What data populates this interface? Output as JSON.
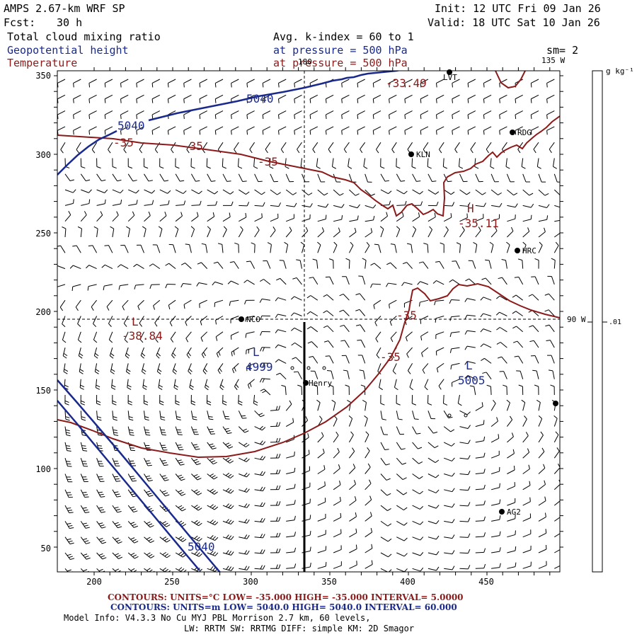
{
  "header": {
    "model": "AMPS 2.67-km WRF SP",
    "fcst_label": "Fcst:",
    "fcst_value": "30 h",
    "init": "Init: 12 UTC Fri 09 Jan 26",
    "valid": "Valid: 18 UTC Sat 10 Jan 26",
    "field1": "Total cloud mixing ratio",
    "field2": "Geopotential height",
    "field3": "Temperature",
    "avg_line": "Avg. k-index =  60 to   1",
    "pressure1": "at pressure =  500 hPa",
    "pressure2": "at pressure =  500 hPa",
    "smoothing": "sm= 2"
  },
  "map": {
    "x_ticks": [
      "200",
      "250",
      "300",
      "350",
      "400",
      "450"
    ],
    "y_ticks": [
      "50",
      "100",
      "150",
      "200",
      "250",
      "300",
      "350"
    ],
    "lon_labels": {
      "top_180": "180",
      "top_135w": "135 W",
      "right_90w": "90 W"
    },
    "stations": [
      {
        "name": "RDG"
      },
      {
        "name": "KLN"
      },
      {
        "name": "HRC"
      },
      {
        "name": "NCO"
      },
      {
        "name": "Henry"
      },
      {
        "name": "AG2"
      },
      {
        "name": "LVT"
      },
      {
        "name": ""
      }
    ],
    "height_labels": {
      "h1": "5040",
      "h2": "5040",
      "h3": "5040",
      "low1_mark": "L",
      "low1_value": "4999",
      "low2_mark": "L",
      "low2_value": "5005"
    },
    "temp_labels": {
      "c1": "-35",
      "c2": "-35",
      "c3": "-35",
      "c4": "-35",
      "c5": "-35",
      "max_top": "-33.49",
      "high_mark": "H",
      "high_value": "-35.11",
      "low_mark": "L",
      "low_value": "-38.84"
    }
  },
  "colorbar": {
    "unit": "g kg⁻¹",
    "tick": ".01"
  },
  "footer": {
    "temp_contours": "CONTOURS:  UNITS=°C  LOW=  -35.000        HIGH=  -35.000          INTERVAL=    5.0000",
    "height_contours": "CONTOURS:  UNITS=m  LOW=  5040.0         HIGH=  5040.0           INTERVAL=   60.000",
    "model_info": "Model Info: V4.3.3    No Cu    MYJ PBL   Morrison             2.7 km,  60 levels,",
    "model_info2": "LW: RRTM SW: RRTMG    DIFF: simple KM: 2D Smagor"
  },
  "colors": {
    "height": "#1a2a8c",
    "temperature": "#8b1a1a",
    "barbs": "#000000"
  }
}
